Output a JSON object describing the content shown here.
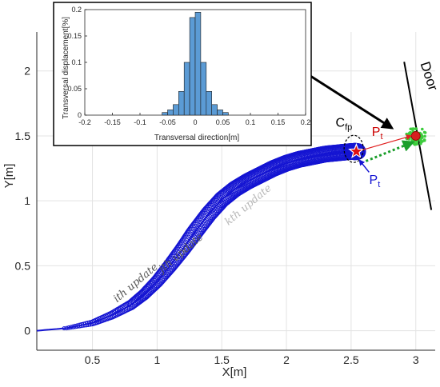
{
  "chart_data": [
    {
      "type": "scatter",
      "title": "",
      "xlabel": "X[m]",
      "ylabel": "Y[m]",
      "xlim": [
        0.07,
        3.15
      ],
      "ylim": [
        -0.15,
        2.3
      ],
      "xticks": [
        "0.5",
        "1",
        "1.5",
        "2",
        "2.5",
        "3"
      ],
      "xtick_values": [
        0.5,
        1,
        1.5,
        2,
        2.5,
        3
      ],
      "yticks": [
        "0",
        "0.5",
        "1",
        "1.5",
        "2"
      ],
      "ytick_values": [
        0,
        0.5,
        1,
        1.5,
        2
      ],
      "grid": true,
      "series": [
        {
          "marker": "circle",
          "color": "#1414d2",
          "x": [
            0.07,
            0.3,
            0.5,
            0.65,
            0.8,
            0.9,
            1.0,
            1.1,
            1.2,
            1.3,
            1.4,
            1.5,
            1.6,
            1.7,
            1.8,
            1.9,
            2.0,
            2.1,
            2.2,
            2.3,
            2.4,
            2.5,
            2.55
          ],
          "y": [
            0.0,
            0.02,
            0.06,
            0.12,
            0.2,
            0.28,
            0.38,
            0.5,
            0.63,
            0.77,
            0.9,
            1.01,
            1.09,
            1.15,
            1.2,
            1.25,
            1.29,
            1.32,
            1.34,
            1.36,
            1.37,
            1.38,
            1.38
          ]
        }
      ],
      "door_line": {
        "x": [
          2.91,
          3.12
        ],
        "y": [
          2.07,
          0.93
        ]
      },
      "door_point": {
        "x": 3.0,
        "y": 1.5
      },
      "position_star": {
        "x": 2.54,
        "y": 1.38
      },
      "fp_circle": {
        "x": 2.52,
        "y": 1.4
      },
      "annotations": [
        {
          "text": "ith update",
          "x": 0.85,
          "y": 0.35
        },
        {
          "text": "jth update",
          "x": 1.2,
          "y": 0.58
        },
        {
          "text": "kth update",
          "x": 1.72,
          "y": 0.95
        },
        {
          "text": "Door",
          "x": 3.07,
          "y": 1.95
        },
        {
          "text": "C",
          "sub": "fp",
          "x": 2.38,
          "y": 1.57
        },
        {
          "text": "P",
          "sub": "t",
          "x": 2.66,
          "y": 1.5,
          "color": "#cc0000"
        },
        {
          "text": "P",
          "sub": "t",
          "x": 2.64,
          "y": 1.13,
          "color": "#1414d2"
        }
      ]
    },
    {
      "type": "bar",
      "title": "",
      "xlabel": "Transversal direction[m]",
      "ylabel": "Transversal displacement[%]",
      "xlim": [
        -0.2,
        0.2
      ],
      "ylim": [
        0,
        0.2
      ],
      "xticks": [
        "-0.2",
        "-0.15",
        "-0.1",
        "-0.05",
        "0",
        "0.05",
        "0.1",
        "0.15",
        "0.2"
      ],
      "xtick_values": [
        -0.2,
        -0.15,
        -0.1,
        -0.05,
        0,
        0.05,
        0.1,
        0.15,
        0.2
      ],
      "yticks": [
        "0",
        "0.05",
        "0.1",
        "0.15",
        "0.2"
      ],
      "ytick_values": [
        0,
        0.05,
        0.1,
        0.15,
        0.2
      ],
      "bin_width": 0.01,
      "bin_centers": [
        -0.055,
        -0.045,
        -0.035,
        -0.025,
        -0.015,
        -0.005,
        0.005,
        0.015,
        0.025,
        0.035,
        0.045,
        0.055
      ],
      "values": [
        0.005,
        0.01,
        0.02,
        0.045,
        0.1,
        0.185,
        0.195,
        0.1,
        0.045,
        0.02,
        0.01,
        0.005
      ],
      "bar_color": "#5b9bd5"
    }
  ]
}
